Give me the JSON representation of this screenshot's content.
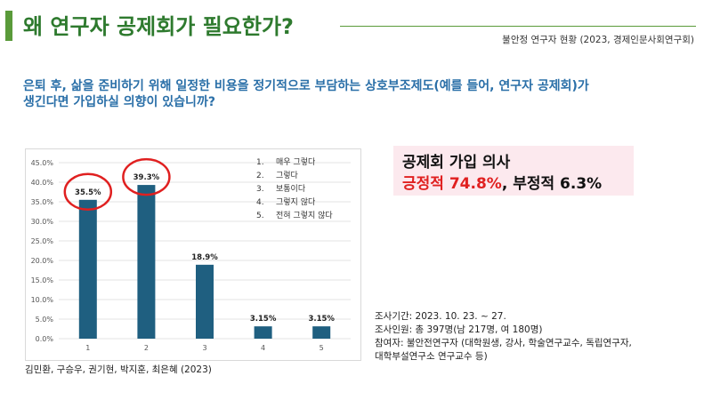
{
  "header": {
    "title": "왜 연구자 공제회가 필요한가?",
    "subtitle": "불안정 연구자 현황 (2023, 경제인문사회연구회)",
    "accent_color": "#5a9a3a"
  },
  "question": {
    "line1": "은퇴 후, 삶을 준비하기 위해 일정한 비용을 정기적으로 부담하는 상호부조제도(예를 들어, 연구자 공제회)가",
    "line2": "생긴다면 가입하실 의향이 있습니까?"
  },
  "chart_data": {
    "type": "bar",
    "categories": [
      "1",
      "2",
      "3",
      "4",
      "5"
    ],
    "values": [
      35.5,
      39.3,
      18.9,
      3.15,
      3.15
    ],
    "value_labels": [
      "35.5%",
      "39.3%",
      "18.9%",
      "3.15%",
      "3.15%"
    ],
    "ylim": [
      0,
      45
    ],
    "yticks": [
      "0.0%",
      "5.0%",
      "10.0%",
      "15.0%",
      "20.0%",
      "25.0%",
      "30.0%",
      "35.0%",
      "40.0%",
      "45.0%"
    ],
    "title": "",
    "xlabel": "",
    "ylabel": "",
    "grid": true,
    "bar_color": "#1f5f80",
    "highlight_color": "#e02020",
    "highlighted": [
      0,
      1
    ],
    "legend_placement": "top-right",
    "legend": [
      {
        "num": "1.",
        "label": "매우 그렇다"
      },
      {
        "num": "2.",
        "label": "그렇다"
      },
      {
        "num": "3.",
        "label": "보통이다"
      },
      {
        "num": "4.",
        "label": "그렇지 않다"
      },
      {
        "num": "5.",
        "label": "전혀 그렇지 않다"
      }
    ]
  },
  "callout": {
    "title": "공제회 가입 의사",
    "positive": "긍정적 74.8%",
    "separator": ",",
    "negative": "부정적 6.3%"
  },
  "survey": {
    "period": "조사기간: 2023. 10. 23. ~ 27.",
    "sample": "조사인원: 총 397명(남 217명, 여 180명)",
    "participants1": "참여자: 불안전연구자 (대학원생, 강사, 학술연구교수, 독립연구자,",
    "participants2": "대학부설연구소 연구교수 등)"
  },
  "authors": "김민환, 구승우, 권기현, 박지훈, 최은혜 (2023)"
}
